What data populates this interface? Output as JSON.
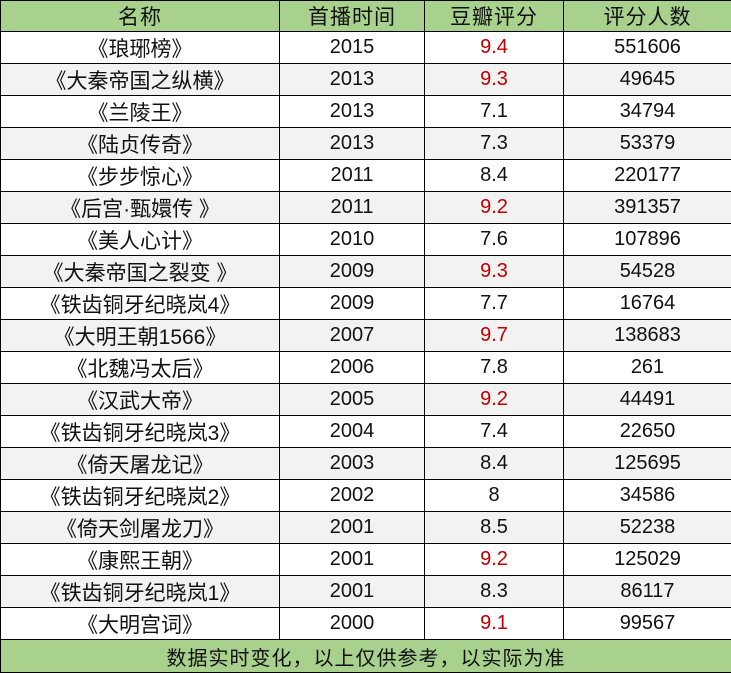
{
  "table": {
    "headers": [
      "名称",
      "首播时间",
      "豆瓣评分",
      "评分人数"
    ],
    "rows": [
      {
        "name": "《琅琊榜》",
        "year": "2015",
        "score": "9.4",
        "count": "551606",
        "highlight": true
      },
      {
        "name": "《大秦帝国之纵横》",
        "year": "2013",
        "score": "9.3",
        "count": "49645",
        "highlight": true
      },
      {
        "name": "《兰陵王》",
        "year": "2013",
        "score": "7.1",
        "count": "34794",
        "highlight": false
      },
      {
        "name": "《陆贞传奇》",
        "year": "2013",
        "score": "7.3",
        "count": "53379",
        "highlight": false
      },
      {
        "name": "《步步惊心》",
        "year": "2011",
        "score": "8.4",
        "count": "220177",
        "highlight": false
      },
      {
        "name": "《后宫·甄嬛传 》",
        "year": "2011",
        "score": "9.2",
        "count": "391357",
        "highlight": true
      },
      {
        "name": "《美人心计》",
        "year": "2010",
        "score": "7.6",
        "count": "107896",
        "highlight": false
      },
      {
        "name": "《大秦帝国之裂变 》",
        "year": "2009",
        "score": "9.3",
        "count": "54528",
        "highlight": true
      },
      {
        "name": "《铁齿铜牙纪晓岚4》",
        "year": "2009",
        "score": "7.7",
        "count": "16764",
        "highlight": false
      },
      {
        "name": "《大明王朝1566》",
        "year": "2007",
        "score": "9.7",
        "count": "138683",
        "highlight": true
      },
      {
        "name": "《北魏冯太后》",
        "year": "2006",
        "score": "7.8",
        "count": "261",
        "highlight": false
      },
      {
        "name": "《汉武大帝》",
        "year": "2005",
        "score": "9.2",
        "count": "44491",
        "highlight": true
      },
      {
        "name": "《铁齿铜牙纪晓岚3》",
        "year": "2004",
        "score": "7.4",
        "count": "22650",
        "highlight": false
      },
      {
        "name": "《倚天屠龙记》",
        "year": "2003",
        "score": "8.4",
        "count": "125695",
        "highlight": false
      },
      {
        "name": "《铁齿铜牙纪晓岚2》",
        "year": "2002",
        "score": "8",
        "count": "34586",
        "highlight": false
      },
      {
        "name": "《倚天剑屠龙刀》",
        "year": "2001",
        "score": "8.5",
        "count": "52238",
        "highlight": false
      },
      {
        "name": "《康熙王朝》",
        "year": "2001",
        "score": "9.2",
        "count": "125029",
        "highlight": true
      },
      {
        "name": "《铁齿铜牙纪晓岚1》",
        "year": "2001",
        "score": "8.3",
        "count": "86117",
        "highlight": false
      },
      {
        "name": "《大明宫词》",
        "year": "2000",
        "score": "9.1",
        "count": "99567",
        "highlight": true
      }
    ],
    "footer": "数据实时变化，以上仅供参考，以实际为准"
  },
  "colors": {
    "header_background": "#a9d18e",
    "high_score_text": "#c00000",
    "striped_row_background": "#f2f2f2"
  }
}
